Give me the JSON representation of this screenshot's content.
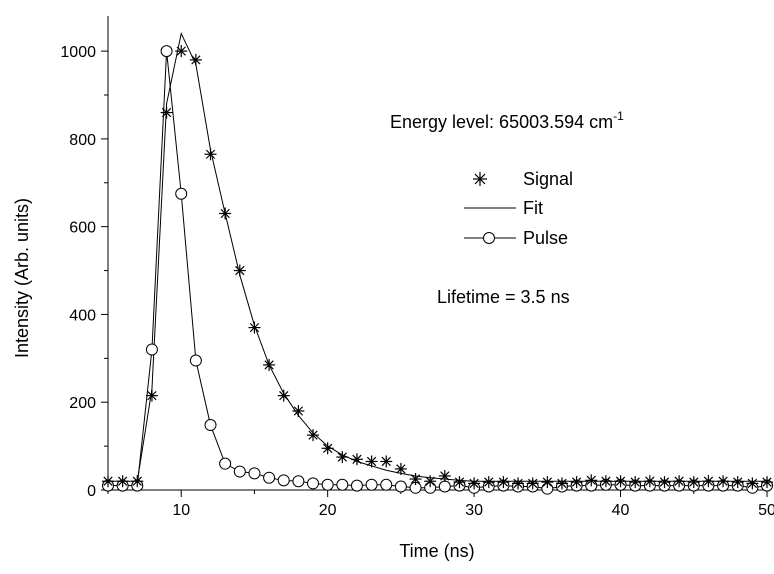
{
  "chart_data": {
    "type": "scatter",
    "xlabel": "Time (ns)",
    "ylabel": "Intensity (Arb. units)",
    "xlim": [
      5,
      50
    ],
    "ylim": [
      0,
      1080
    ],
    "x_ticks": [
      10,
      20,
      30,
      40,
      50
    ],
    "y_ticks": [
      0,
      200,
      400,
      600,
      800,
      1000
    ],
    "grid": false,
    "legend_position": "right",
    "annotations": {
      "energy_prefix": "Energy level: 65003.594 cm",
      "energy_superscript": "-1",
      "lifetime": "Lifetime = 3.5 ns"
    },
    "series": [
      {
        "name": "Signal",
        "marker": "asterisk",
        "x": [
          5,
          6,
          7,
          8,
          9,
          10,
          11,
          12,
          13,
          14,
          15,
          16,
          17,
          18,
          19,
          20,
          21,
          22,
          23,
          24,
          25,
          26,
          27,
          28,
          29,
          30,
          31,
          32,
          33,
          34,
          35,
          36,
          37,
          38,
          39,
          40,
          41,
          42,
          43,
          44,
          45,
          46,
          47,
          48,
          49,
          50
        ],
        "y": [
          20,
          20,
          20,
          215,
          860,
          1000,
          980,
          765,
          630,
          500,
          370,
          285,
          215,
          180,
          125,
          95,
          75,
          70,
          65,
          65,
          48,
          25,
          20,
          32,
          18,
          15,
          18,
          18,
          15,
          15,
          18,
          15,
          18,
          22,
          20,
          20,
          18,
          20,
          18,
          20,
          18,
          20,
          20,
          18,
          15,
          18
        ]
      },
      {
        "name": "Fit",
        "marker": "none",
        "x": [
          5,
          6,
          7,
          8,
          9,
          10,
          11,
          12,
          13,
          14,
          15,
          16,
          17,
          18,
          19,
          20,
          21,
          22,
          23,
          24,
          25,
          26,
          27,
          28,
          29,
          30,
          31,
          32,
          33,
          34,
          35,
          36,
          37,
          38,
          39,
          40,
          41,
          42,
          43,
          44,
          45,
          46,
          47,
          48,
          49,
          50
        ],
        "y": [
          20,
          20,
          20,
          230,
          880,
          1040,
          970,
          775,
          630,
          490,
          375,
          285,
          220,
          170,
          130,
          100,
          80,
          65,
          55,
          45,
          38,
          32,
          28,
          25,
          22,
          20,
          20,
          20,
          20,
          20,
          20,
          20,
          20,
          20,
          20,
          20,
          20,
          20,
          20,
          20,
          20,
          20,
          20,
          20,
          20,
          20
        ]
      },
      {
        "name": "Pulse",
        "marker": "circle",
        "x": [
          5,
          6,
          7,
          8,
          9,
          10,
          11,
          12,
          13,
          14,
          15,
          16,
          17,
          18,
          19,
          20,
          21,
          22,
          23,
          24,
          25,
          26,
          27,
          28,
          29,
          30,
          31,
          32,
          33,
          34,
          35,
          36,
          37,
          38,
          39,
          40,
          41,
          42,
          43,
          44,
          45,
          46,
          47,
          48,
          49,
          50
        ],
        "y": [
          10,
          10,
          10,
          320,
          1000,
          675,
          295,
          148,
          60,
          42,
          38,
          28,
          22,
          20,
          15,
          12,
          12,
          10,
          12,
          12,
          8,
          5,
          5,
          8,
          10,
          5,
          8,
          10,
          8,
          8,
          3,
          8,
          10,
          10,
          12,
          12,
          10,
          10,
          10,
          10,
          10,
          10,
          10,
          10,
          5,
          10
        ]
      }
    ]
  }
}
